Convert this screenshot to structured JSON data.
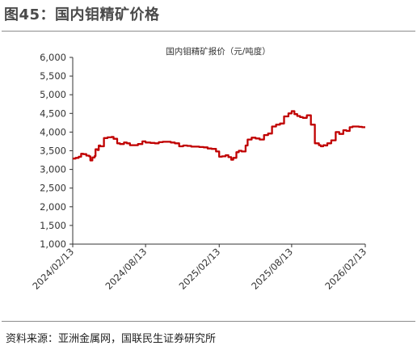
{
  "header": {
    "title": "图45：国内钼精矿价格"
  },
  "source": "资料来源：亚洲金属网，国联民生证券研究所",
  "chart_data": {
    "type": "line",
    "title": "",
    "xlabel": "",
    "ylabel": "",
    "ylim": [
      1000,
      6000
    ],
    "yticks": [
      "6,000",
      "5,500",
      "5,000",
      "4,500",
      "4,000",
      "3,500",
      "3,000",
      "2,500",
      "2,000",
      "1,500",
      "1,000"
    ],
    "xticks": [
      "2024/02/13",
      "2024/08/13",
      "2025/02/13",
      "2025/08/13",
      "2026/02/13"
    ],
    "legend_position": "top-center",
    "grid": false,
    "line_color": "#c00000",
    "series": [
      {
        "name": "国内钼精矿报价（元/吨度）",
        "x": [
          "2024-02-13",
          "2024-02-20",
          "2024-02-28",
          "2024-03-05",
          "2024-03-10",
          "2024-03-18",
          "2024-03-25",
          "2024-03-28",
          "2024-04-02",
          "2024-04-08",
          "2024-04-10",
          "2024-04-15",
          "2024-04-18",
          "2024-04-22",
          "2024-05-01",
          "2024-05-10",
          "2024-05-20",
          "2024-05-25",
          "2024-06-03",
          "2024-06-10",
          "2024-06-20",
          "2024-06-27",
          "2024-07-05",
          "2024-07-15",
          "2024-07-25",
          "2024-08-05",
          "2024-08-13",
          "2024-08-25",
          "2024-09-05",
          "2024-09-15",
          "2024-09-25",
          "2024-10-05",
          "2024-10-15",
          "2024-10-25",
          "2024-11-05",
          "2024-11-15",
          "2024-11-25",
          "2024-12-05",
          "2024-12-15",
          "2024-12-25",
          "2025-01-05",
          "2025-01-15",
          "2025-01-25",
          "2025-02-05",
          "2025-02-13",
          "2025-02-20",
          "2025-03-01",
          "2025-03-08",
          "2025-03-15",
          "2025-03-20",
          "2025-03-28",
          "2025-04-03",
          "2025-04-10",
          "2025-04-20",
          "2025-04-25",
          "2025-05-05",
          "2025-05-15",
          "2025-05-25",
          "2025-06-05",
          "2025-06-15",
          "2025-06-25",
          "2025-07-05",
          "2025-07-15",
          "2025-07-25",
          "2025-08-05",
          "2025-08-13",
          "2025-08-20",
          "2025-08-27",
          "2025-09-03",
          "2025-09-10",
          "2025-09-20",
          "2025-09-30",
          "2025-10-10",
          "2025-10-20",
          "2025-10-25",
          "2025-10-31",
          "2025-11-05",
          "2025-11-10",
          "2025-11-20",
          "2025-12-01",
          "2025-12-10",
          "2025-12-20",
          "2025-12-28",
          "2026-01-05",
          "2026-01-12",
          "2026-01-20",
          "2026-01-28",
          "2026-02-05",
          "2026-02-13"
        ],
        "values": [
          3290,
          3310,
          3340,
          3420,
          3410,
          3370,
          3350,
          3240,
          3320,
          3360,
          3540,
          3520,
          3640,
          3620,
          3840,
          3860,
          3870,
          3820,
          3700,
          3680,
          3720,
          3700,
          3650,
          3650,
          3680,
          3750,
          3720,
          3710,
          3700,
          3730,
          3740,
          3740,
          3720,
          3700,
          3620,
          3640,
          3630,
          3610,
          3610,
          3600,
          3590,
          3560,
          3550,
          3480,
          3340,
          3350,
          3380,
          3330,
          3260,
          3310,
          3460,
          3500,
          3480,
          3640,
          3800,
          3850,
          3830,
          3800,
          3920,
          3960,
          4150,
          4200,
          4230,
          4420,
          4500,
          4560,
          4480,
          4430,
          4400,
          4380,
          4450,
          4200,
          3700,
          3650,
          3620,
          3650,
          3640,
          3700,
          3780,
          4000,
          3950,
          4050,
          4030,
          4130,
          4150,
          4150,
          4140,
          4130,
          4130
        ]
      }
    ]
  }
}
